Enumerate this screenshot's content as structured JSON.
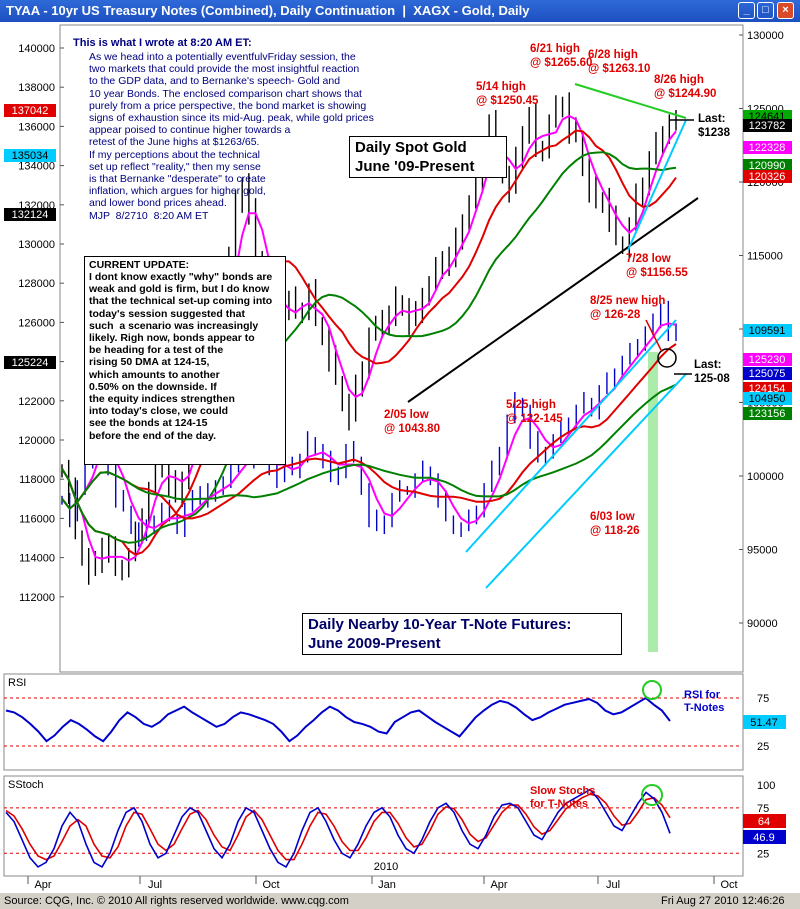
{
  "window": {
    "title_left": "TYAA - 10yr US Treasury Notes (Combined), Daily Continuation",
    "title_sep": "|",
    "title_right": "XAGX - Gold, Daily",
    "buttons": [
      "_",
      "□",
      "×"
    ]
  },
  "footer": {
    "copyright": "Source: CQG, Inc. © 2010 All rights reserved worldwide. www.cqg.com",
    "timestamp": "Fri Aug 27 2010 12:46:26"
  },
  "colors": {
    "price_bars_gold": "#000000",
    "price_bars_tnote": "#0000cc",
    "ma_fast": "#ff00ff",
    "ma_mid": "#e00000",
    "ma_slow": "#008000",
    "trend_channel": "#00ccff",
    "annotation_red": "#e00000",
    "note_text_blue": "#000080",
    "highlight_band": "#66dd66"
  },
  "chart_data": [
    {
      "type": "line",
      "name": "main",
      "title": "Daily Spot Gold\nJune '09-Present",
      "title2": "Daily Nearby 10-Year T-Note Futures:\nJune 2009-Present",
      "left_axis_ticks": [
        "140000",
        "138000",
        "136000",
        "134000",
        "132000",
        "130000",
        "128000",
        "126000",
        "124000",
        "122000",
        "120000",
        "118000",
        "116000",
        "114000",
        "112000"
      ],
      "right_axis_ticks": [
        "130000",
        "125000",
        "120000",
        "115000",
        "110000",
        "105000",
        "100000",
        "95000",
        "90000"
      ],
      "x_ticks": [
        "Apr",
        "Jul",
        "Oct",
        "Jan",
        "Apr",
        "Jul",
        "Oct"
      ],
      "x_year_label": "2010",
      "right_price_tags": [
        {
          "value": "124641",
          "color": "#00aa00"
        },
        {
          "value": "123782",
          "color": "#000000"
        },
        {
          "value": "122328",
          "color": "#ff00ff"
        },
        {
          "value": "120990",
          "color": "#008000"
        },
        {
          "value": "120326",
          "color": "#e00000"
        },
        {
          "value": "109591",
          "color": "#00ccff"
        },
        {
          "value": "125230",
          "color": "#ff00ff"
        },
        {
          "value": "125075",
          "color": "#0000cc"
        },
        {
          "value": "124154",
          "color": "#e00000"
        },
        {
          "value": "104950",
          "color": "#00ccff"
        },
        {
          "value": "123156",
          "color": "#008000"
        }
      ],
      "left_price_tags": [
        {
          "value": "137042",
          "color": "#e00000"
        },
        {
          "value": "135034",
          "color": "#00ccff"
        },
        {
          "value": "132124",
          "color": "#000000"
        },
        {
          "value": "125224",
          "color": "#000000"
        }
      ],
      "annotations": [
        {
          "text": "6/21 high\n@ $1265.60"
        },
        {
          "text": "6/28 high\n@ $1263.10"
        },
        {
          "text": "8/26 high\n@ $1244.90"
        },
        {
          "text": "5/14 high\n@ $1250.45"
        },
        {
          "text": "Last:\n$1238"
        },
        {
          "text": "7/28 low\n@ $1156.55"
        },
        {
          "text": "8/25 new high\n@ 126-28"
        },
        {
          "text": "Last:\n125-08"
        },
        {
          "text": "2/05 low\n@ 1043.80"
        },
        {
          "text": "5/25 high\n@ 122-145"
        },
        {
          "text": "6/03 low\n@ 118-26"
        }
      ],
      "gold_series": [
        1005,
        990,
        960,
        945,
        935,
        940,
        955,
        950,
        935,
        940,
        945,
        960,
        975,
        990,
        1010,
        1005,
        995,
        985,
        1000,
        1020,
        1050,
        1075,
        1080,
        1100,
        1120,
        1150,
        1185,
        1200,
        1180,
        1150,
        1140,
        1120,
        1100,
        1115,
        1120,
        1110,
        1115,
        1125,
        1105,
        1095,
        1080,
        1065,
        1050,
        1040,
        1060,
        1075,
        1095,
        1100,
        1110,
        1105,
        1120,
        1115,
        1105,
        1110,
        1125,
        1130,
        1140,
        1150,
        1145,
        1160,
        1175,
        1185,
        1200,
        1215,
        1240,
        1220,
        1205,
        1195,
        1215,
        1235,
        1245,
        1220,
        1225,
        1240,
        1250,
        1255,
        1235,
        1230,
        1210,
        1195,
        1185,
        1190,
        1175,
        1160,
        1157,
        1170,
        1190,
        1200,
        1215,
        1225,
        1235,
        1240,
        1238
      ],
      "tnote_series": [
        117.0,
        116.0,
        117.5,
        119.0,
        120.0,
        120.5,
        118.5,
        117.0,
        116.5,
        115.5,
        115.0,
        115.5,
        116.0,
        116.5,
        116.0,
        115.5,
        116.5,
        117.0,
        117.5,
        117.0,
        117.5,
        118.0,
        118.5,
        119.0,
        119.5,
        119.0,
        119.5,
        118.5,
        118.0,
        119.0,
        118.5,
        119.0,
        120.0,
        119.5,
        119.0,
        118.0,
        118.5,
        119.5,
        119.0,
        117.5,
        116.0,
        115.5,
        116.0,
        117.0,
        117.5,
        117.5,
        118.0,
        118.5,
        118.0,
        117.0,
        116.0,
        115.5,
        115.5,
        116.0,
        116.5,
        117.5,
        118.5,
        119.5,
        121.0,
        122.0,
        121.5,
        120.0,
        119.0,
        119.5,
        120.0,
        120.5,
        121.0,
        121.5,
        122.0,
        121.5,
        122.5,
        123.0,
        123.5,
        124.0,
        124.5,
        125.0,
        125.5,
        126.0,
        126.8,
        125.5,
        125.2
      ]
    },
    {
      "type": "line",
      "name": "rsi",
      "ylabel": "RSI",
      "ticks": [
        "75",
        "25"
      ],
      "annotation": "RSI for\nT-Notes",
      "last_value": "51.47",
      "values": [
        62,
        60,
        55,
        48,
        40,
        30,
        36,
        45,
        52,
        48,
        42,
        35,
        30,
        40,
        52,
        60,
        55,
        48,
        45,
        50,
        58,
        62,
        66,
        60,
        55,
        50,
        45,
        48,
        55,
        60,
        58,
        55,
        52,
        48,
        40,
        30,
        36,
        45,
        52,
        60,
        66,
        62,
        55,
        50,
        48,
        45,
        40,
        38,
        50,
        55,
        60,
        62,
        56,
        50,
        45,
        40,
        35,
        45,
        55,
        62,
        68,
        72,
        70,
        65,
        58,
        52,
        55,
        60,
        64,
        68,
        70,
        72,
        74,
        70,
        62,
        58,
        60,
        65,
        70,
        75,
        68,
        62,
        51
      ]
    },
    {
      "type": "line",
      "name": "stochastic",
      "ylabel": "SStoch",
      "ticks": [
        "100",
        "75",
        "25"
      ],
      "annotation": "Slow Stochs\nfor T-Notes",
      "last_values": [
        {
          "value": "64",
          "color": "#e00000"
        },
        {
          "value": "46.9",
          "color": "#0000cc"
        }
      ],
      "k_values": [
        70,
        60,
        40,
        20,
        10,
        15,
        30,
        55,
        70,
        60,
        35,
        15,
        10,
        25,
        50,
        70,
        75,
        60,
        35,
        20,
        25,
        45,
        65,
        75,
        70,
        50,
        30,
        20,
        35,
        60,
        75,
        70,
        50,
        30,
        15,
        10,
        25,
        50,
        70,
        75,
        60,
        40,
        25,
        20,
        35,
        55,
        70,
        75,
        65,
        45,
        30,
        25,
        40,
        60,
        75,
        80,
        70,
        50,
        35,
        30,
        45,
        65,
        78,
        80,
        75,
        60,
        45,
        40,
        55,
        70,
        80,
        85,
        90,
        95,
        85,
        70,
        55,
        50,
        65,
        80,
        92,
        85,
        70,
        47
      ],
      "d_values": [
        72,
        66,
        52,
        35,
        22,
        18,
        22,
        38,
        55,
        62,
        55,
        35,
        22,
        20,
        32,
        55,
        70,
        68,
        52,
        35,
        28,
        35,
        52,
        68,
        72,
        62,
        45,
        32,
        28,
        45,
        65,
        72,
        62,
        45,
        28,
        18,
        18,
        35,
        55,
        70,
        68,
        55,
        38,
        28,
        28,
        42,
        60,
        70,
        70,
        58,
        42,
        32,
        35,
        50,
        68,
        76,
        74,
        62,
        46,
        38,
        42,
        56,
        70,
        78,
        78,
        68,
        54,
        46,
        50,
        62,
        74,
        80,
        86,
        90,
        88,
        80,
        66,
        56,
        58,
        70,
        84,
        86,
        78,
        64
      ]
    },
    {
      "type": "table",
      "name": "commentary",
      "note_title": "This is what I wrote at 8:20 AM ET:",
      "note_body": "As we head into a potentially eventfulvFriday session, the\ntwo markets that could provide the most insightful reaction\nto the GDP data, and to Bernanke's speech- Gold and\n10 year Bonds. The enclosed comparison chart shows that\npurely from a price perspective, the bond market is showing\nsigns of exhaustion since its mid-Aug. peak, while gold prices\nappear poised to continue higher towards a\nretest of the June highs at $1263/65.\nIf my perceptions about the technical\nset up reflect \"reality,\" then my sense\nis that Bernanke \"desperate\" to create\ninflation, which argues for higher gold,\nand lower bond prices ahead.\nMJP  8/2710  8:20 AM ET",
      "update_title": "CURRENT UPDATE:",
      "update_body": "I dont know exactly \"why\" bonds are\nweak and gold is firm, but I do know\nthat the technical set-up coming into\ntoday's session suggested that\nsuch  a scenario was increasingly\nlikely. Righ now, bonds appear to\nbe heading for a test of the\nrising 50 DMA at 124-15,\nwhich amounts to another\n0.50% on the downside. If\nthe equity indices strengthen\ninto today's close, we could\nsee the bonds at 124-15\nbefore the end of the day."
    }
  ]
}
